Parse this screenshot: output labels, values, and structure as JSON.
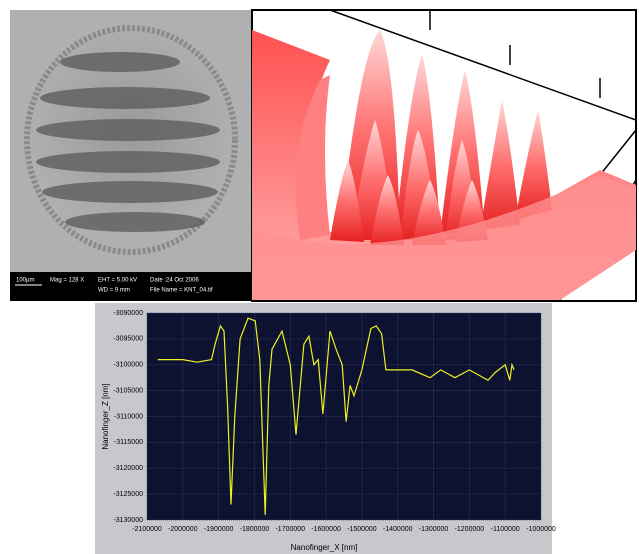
{
  "sem_image": {
    "scale_bar": "100µm",
    "info": [
      "Mag =  128 X",
      "EHT = 5.00 kV",
      "Date :24 Oct 2006",
      "WD =  9 mm",
      "File Name = KNT_04.tif"
    ]
  },
  "chart_data": {
    "type": "line",
    "x_label": "Nanofinger_X [nm]",
    "y_label": "Nanofinger_Z [nm]",
    "x": [
      -2070000,
      -2000000,
      -1960000,
      -1920000,
      -1910000,
      -1895000,
      -1885000,
      -1875000,
      -1865500,
      -1855000,
      -1840000,
      -1818000,
      -1798000,
      -1785000,
      -1770000,
      -1760000,
      -1751000,
      -1723000,
      -1700000,
      -1684000,
      -1662000,
      -1648000,
      -1634000,
      -1622000,
      -1609000,
      -1589000,
      -1572000,
      -1555000,
      -1544000,
      -1533000,
      -1522000,
      -1500000,
      -1475000,
      -1460000,
      -1445000,
      -1433000,
      -1400000,
      -1360000,
      -1310000,
      -1280000,
      -1240000,
      -1200000,
      -1148000,
      -1128000,
      -1100000,
      -1087000,
      -1081000,
      -1075000
    ],
    "values": [
      -3099000,
      -3099000,
      -3099500,
      -3099000,
      -3096000,
      -3092500,
      -3093500,
      -3108000,
      -3127000,
      -3110000,
      -3095000,
      -3091000,
      -3091500,
      -3099000,
      -3129000,
      -3104000,
      -3097000,
      -3093500,
      -3100000,
      -3113500,
      -3096000,
      -3094500,
      -3100000,
      -3099000,
      -3109500,
      -3093500,
      -3097000,
      -3100000,
      -3111000,
      -3104000,
      -3106000,
      -3101000,
      -3093000,
      -3092500,
      -3094000,
      -3101000,
      -3101000,
      -3101000,
      -3102500,
      -3101000,
      -3102500,
      -3101000,
      -3103000,
      -3101500,
      -3100000,
      -3103000,
      -3100000,
      -3101000
    ],
    "color": "#f0f020",
    "xlim": [
      -2100000,
      -1000000
    ],
    "ylim": [
      -3130000,
      -3090000
    ],
    "xticks": [
      -2100000,
      -2000000,
      -1900000,
      -1800000,
      -1700000,
      -1600000,
      -1500000,
      -1400000,
      -1300000,
      -1200000,
      -1100000,
      -1000000
    ],
    "yticks": [
      -3130000,
      -3125000,
      -3120000,
      -3115000,
      -3110000,
      -3105000,
      -3100000,
      -3095000,
      -3090000
    ],
    "grid": true
  }
}
